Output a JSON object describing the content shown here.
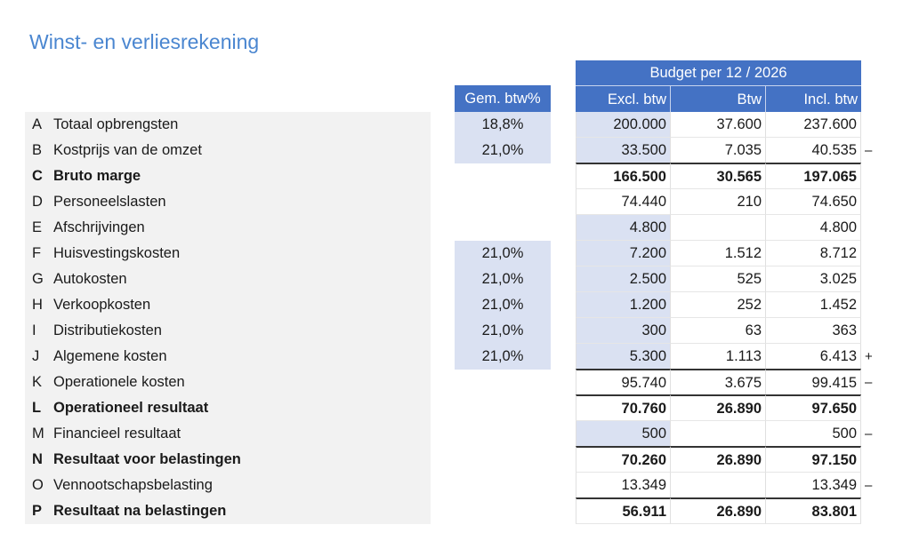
{
  "title": "Winst- en verliesrekening",
  "headers": {
    "budget": "Budget per 12 / 2026",
    "gem_btw": "Gem. btw%",
    "excl": "Excl. btw",
    "btw": "Btw",
    "incl": "Incl. btw"
  },
  "colors": {
    "header": "#4472c4",
    "input_fill": "#dae1f2",
    "label_bg": "#f2f2f2",
    "title": "#4a86d0"
  },
  "rows": [
    {
      "letter": "A",
      "label": "Totaal opbrengsten",
      "gem": "18,8%",
      "excl": "200.000",
      "btw": "37.600",
      "incl": "237.600",
      "sign": ""
    },
    {
      "letter": "B",
      "label": "Kostprijs van de omzet",
      "gem": "21,0%",
      "excl": "33.500",
      "btw": "7.035",
      "incl": "40.535",
      "sign": "–"
    },
    {
      "letter": "C",
      "label": "Bruto marge",
      "gem": "",
      "excl": "166.500",
      "btw": "30.565",
      "incl": "197.065",
      "sign": ""
    },
    {
      "letter": "D",
      "label": "Personeelslasten",
      "gem": "",
      "excl": "74.440",
      "btw": "210",
      "incl": "74.650",
      "sign": ""
    },
    {
      "letter": "E",
      "label": "Afschrijvingen",
      "gem": "",
      "excl": "4.800",
      "btw": "",
      "incl": "4.800",
      "sign": ""
    },
    {
      "letter": "F",
      "label": "Huisvestingskosten",
      "gem": "21,0%",
      "excl": "7.200",
      "btw": "1.512",
      "incl": "8.712",
      "sign": ""
    },
    {
      "letter": "G",
      "label": "Autokosten",
      "gem": "21,0%",
      "excl": "2.500",
      "btw": "525",
      "incl": "3.025",
      "sign": ""
    },
    {
      "letter": "H",
      "label": "Verkoopkosten",
      "gem": "21,0%",
      "excl": "1.200",
      "btw": "252",
      "incl": "1.452",
      "sign": ""
    },
    {
      "letter": "I",
      "label": "Distributiekosten",
      "gem": "21,0%",
      "excl": "300",
      "btw": "63",
      "incl": "363",
      "sign": ""
    },
    {
      "letter": "J",
      "label": "Algemene kosten",
      "gem": "21,0%",
      "excl": "5.300",
      "btw": "1.113",
      "incl": "6.413",
      "sign": "+"
    },
    {
      "letter": "K",
      "label": "Operationele kosten",
      "gem": "",
      "excl": "95.740",
      "btw": "3.675",
      "incl": "99.415",
      "sign": "–"
    },
    {
      "letter": "L",
      "label": "Operationeel resultaat",
      "gem": "",
      "excl": "70.760",
      "btw": "26.890",
      "incl": "97.650",
      "sign": ""
    },
    {
      "letter": "M",
      "label": "Financieel resultaat",
      "gem": "",
      "excl": "500",
      "btw": "",
      "incl": "500",
      "sign": "–"
    },
    {
      "letter": "N",
      "label": "Resultaat voor belastingen",
      "gem": "",
      "excl": "70.260",
      "btw": "26.890",
      "incl": "97.150",
      "sign": ""
    },
    {
      "letter": "O",
      "label": "Vennootschapsbelasting",
      "gem": "",
      "excl": "13.349",
      "btw": "",
      "incl": "13.349",
      "sign": "–"
    },
    {
      "letter": "P",
      "label": "Resultaat na belastingen",
      "gem": "",
      "excl": "56.911",
      "btw": "26.890",
      "incl": "83.801",
      "sign": ""
    }
  ]
}
